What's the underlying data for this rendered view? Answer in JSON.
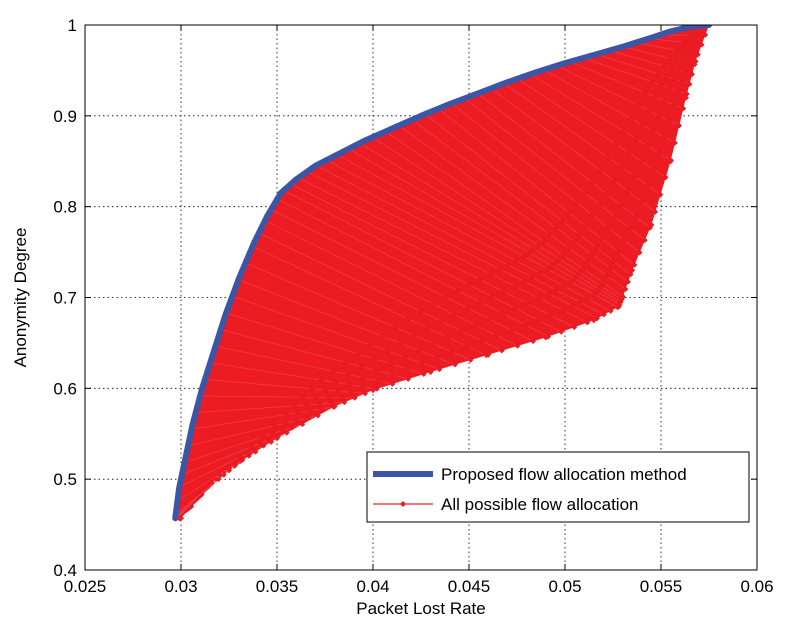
{
  "chart_data": {
    "type": "area",
    "title": "",
    "xlabel": "Packet Lost Rate",
    "ylabel": "Anonymity Degree",
    "xlim": [
      0.025,
      0.06
    ],
    "ylim": [
      0.4,
      1.0
    ],
    "x_ticks": [
      0.025,
      0.03,
      0.035,
      0.04,
      0.045,
      0.05,
      0.055,
      0.06
    ],
    "y_ticks": [
      0.4,
      0.5,
      0.6,
      0.7,
      0.8,
      0.9,
      1.0
    ],
    "x_tick_labels": [
      "0.025",
      "0.03",
      "0.035",
      "0.04",
      "0.045",
      "0.05",
      "0.055",
      "0.06"
    ],
    "y_tick_labels": [
      "0.4",
      "0.5",
      "0.6",
      "0.7",
      "0.8",
      "0.9",
      "1"
    ],
    "grid": true,
    "legend_position": "bottom-right",
    "series": [
      {
        "name": "Proposed flow allocation method",
        "color": "#3c56a5",
        "style": "line",
        "x": [
          0.0297,
          0.0299,
          0.0302,
          0.0306,
          0.0311,
          0.0317,
          0.0323,
          0.033,
          0.0338,
          0.0345,
          0.0352,
          0.036,
          0.037,
          0.0382,
          0.0395,
          0.041,
          0.0425,
          0.044,
          0.0455,
          0.047,
          0.0485,
          0.05,
          0.0515,
          0.053,
          0.0545,
          0.0555,
          0.0565,
          0.0575
        ],
        "y": [
          0.457,
          0.49,
          0.52,
          0.56,
          0.6,
          0.64,
          0.68,
          0.72,
          0.76,
          0.79,
          0.815,
          0.83,
          0.845,
          0.858,
          0.872,
          0.886,
          0.9,
          0.913,
          0.925,
          0.937,
          0.948,
          0.958,
          0.967,
          0.976,
          0.986,
          0.993,
          0.998,
          1.0
        ]
      },
      {
        "name": "All possible flow allocation",
        "color": "#ed1c24",
        "style": "line-marker",
        "lower_boundary": {
          "x": [
            0.03,
            0.032,
            0.035,
            0.038,
            0.04,
            0.043,
            0.046,
            0.049,
            0.0515,
            0.0528,
            0.053,
            0.0535,
            0.0545,
            0.0555,
            0.0563,
            0.0568,
            0.0575
          ],
          "y": [
            0.457,
            0.505,
            0.545,
            0.58,
            0.598,
            0.618,
            0.637,
            0.656,
            0.675,
            0.69,
            0.7,
            0.73,
            0.78,
            0.85,
            0.92,
            0.96,
            1.0
          ]
        }
      }
    ]
  }
}
